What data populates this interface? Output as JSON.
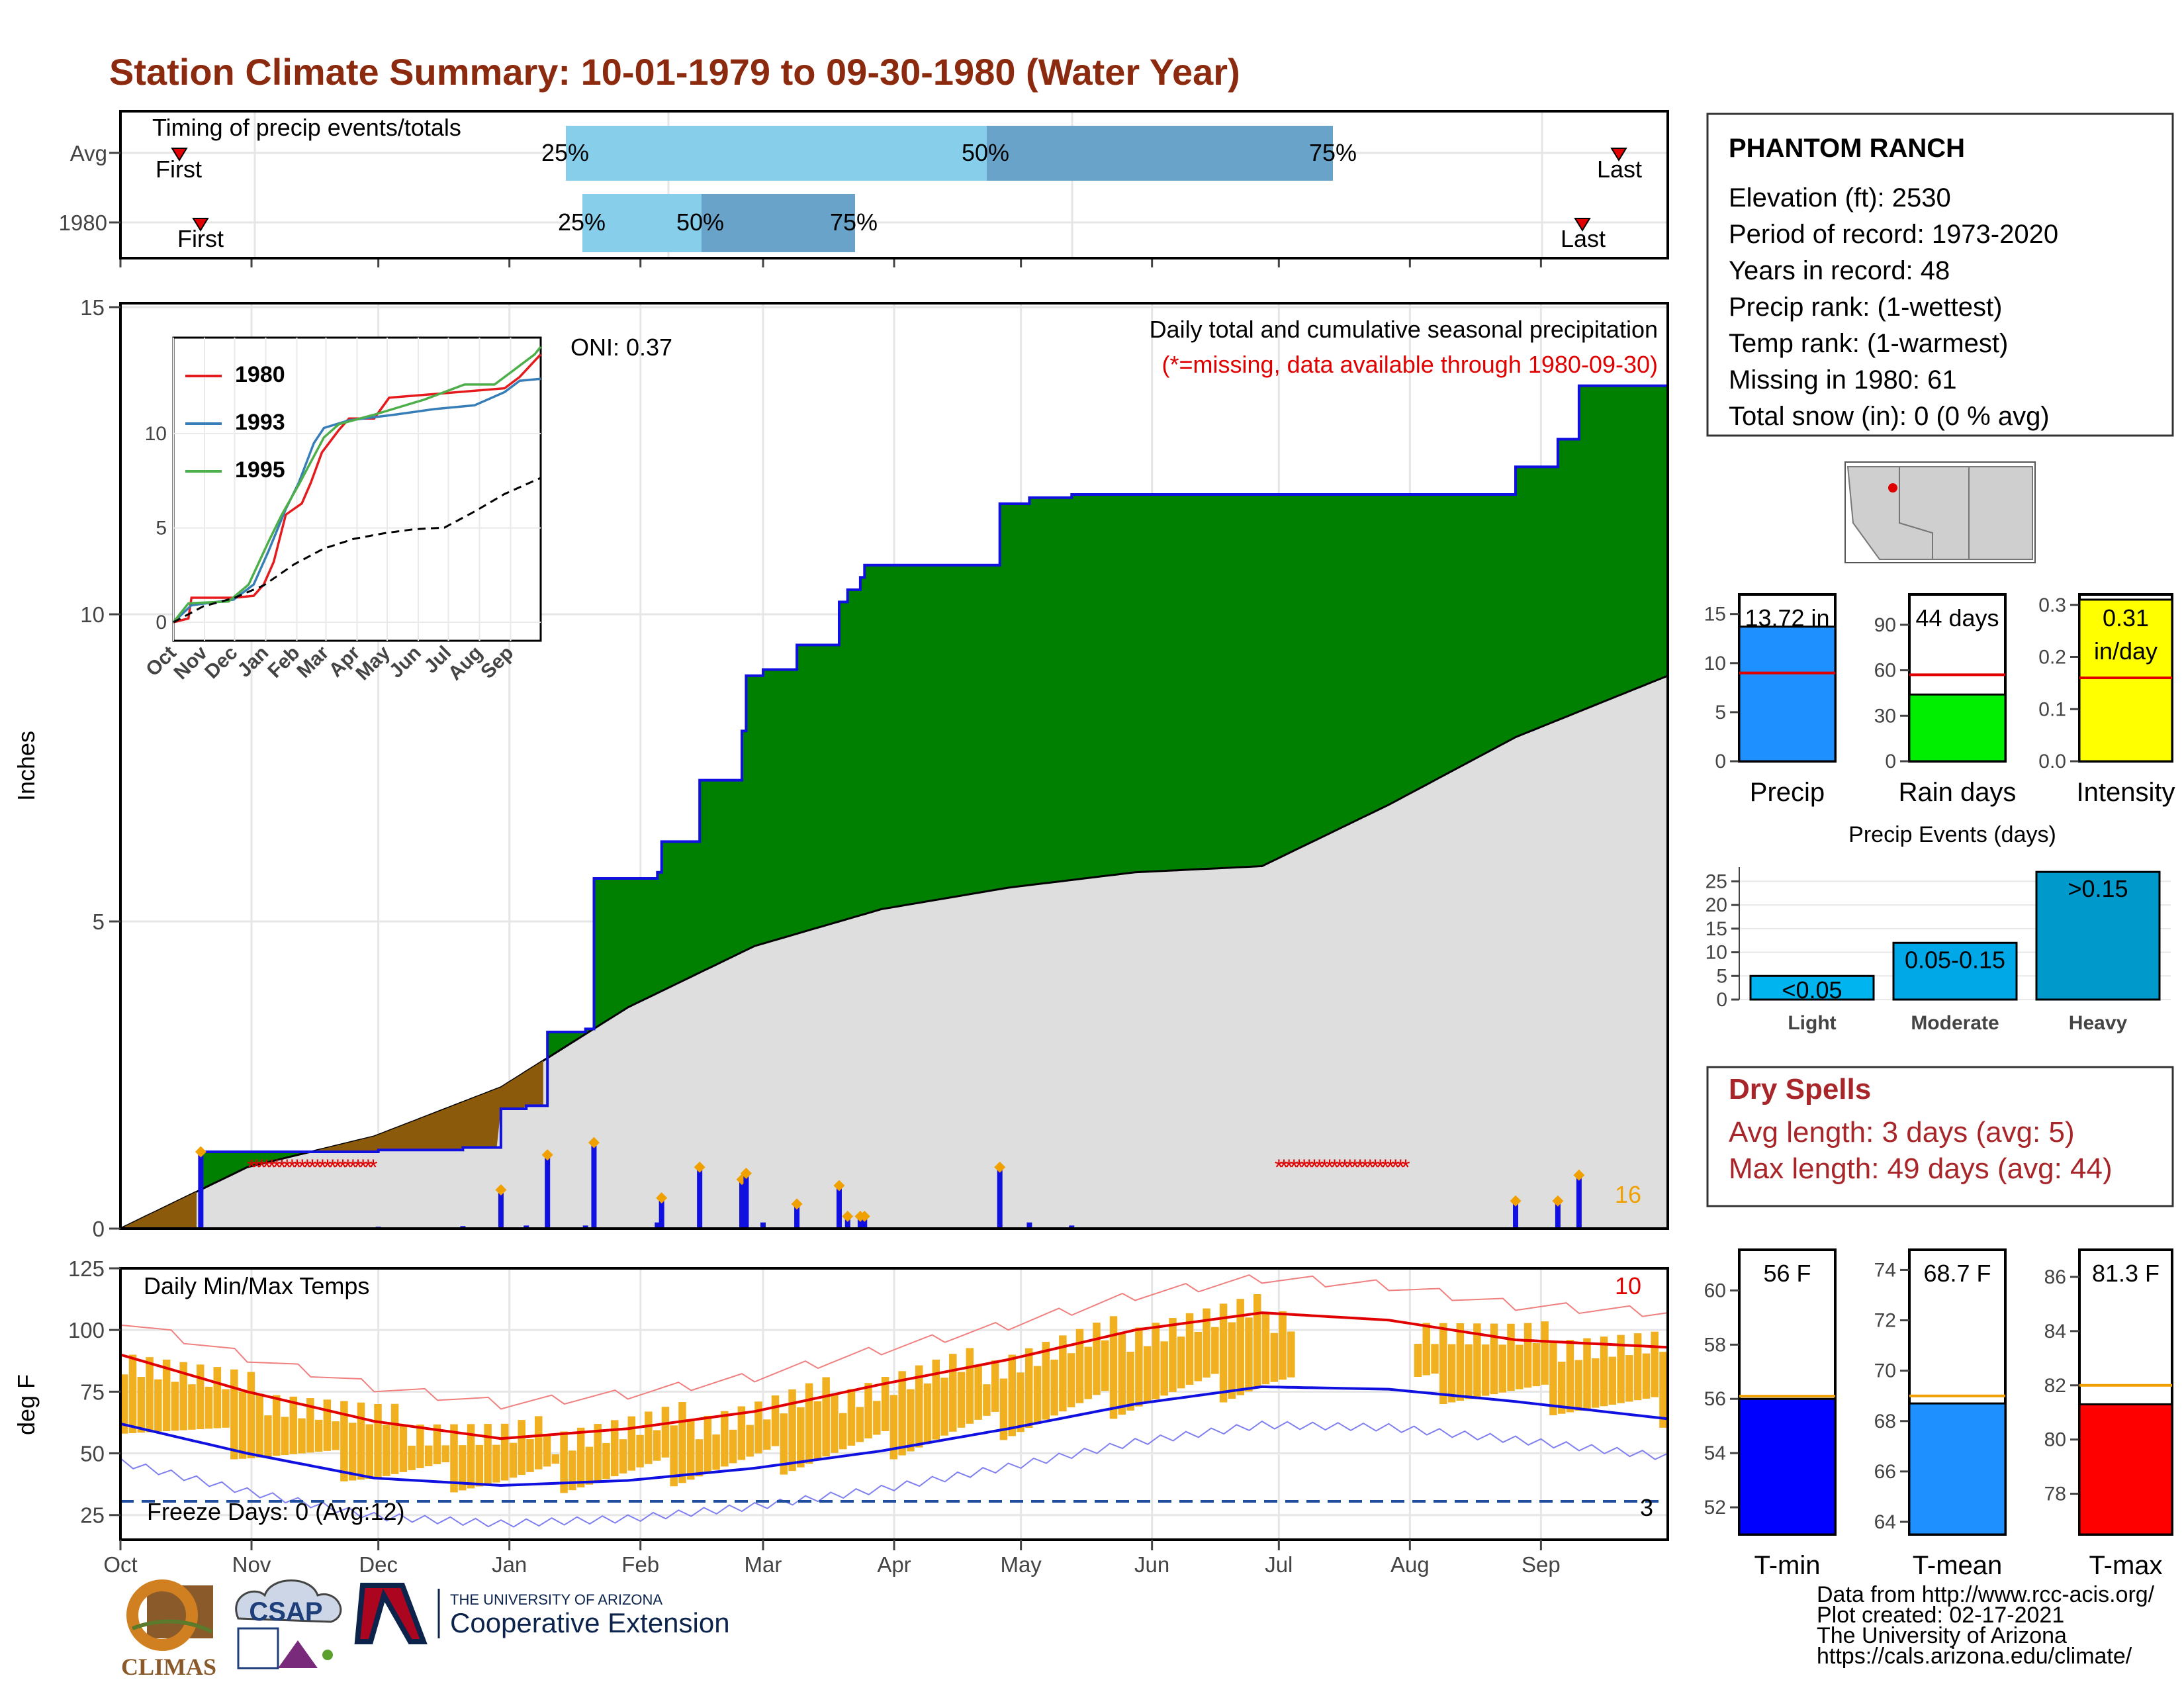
{
  "title": "Station Climate Summary: 10-01-1979 to 09-30-1980 (Water Year)",
  "timing": {
    "title": "Timing of precip events/totals",
    "rows": [
      "Avg",
      "1980"
    ],
    "first_label": "First",
    "last_label": "Last",
    "p25": "25%",
    "p50": "50%",
    "p75": "75%"
  },
  "station": {
    "name": "PHANTOM RANCH",
    "elevation": "Elevation (ft): 2530",
    "period": "Period of record: 1973-2020",
    "years": "Years in record: 48",
    "precip_rank": "Precip rank:  (1-wettest)",
    "temp_rank": "Temp rank:  (1-warmest)",
    "missing": "Missing in 1980: 61",
    "snow": "Total snow (in): 0 (0 % avg)"
  },
  "precip_panel": {
    "ylabel": "Inches",
    "oni": "ONI: 0.37",
    "header": "Daily total and cumulative seasonal precipitation",
    "missing_note": "(*=missing, data available through 1980-09-30)",
    "count_label": "16",
    "yticks": [
      "0",
      "5",
      "10",
      "15"
    ]
  },
  "inset": {
    "legend": [
      "1980",
      "1993",
      "1995"
    ],
    "colors": [
      "#e41a1c",
      "#377eb8",
      "#4daf4a"
    ],
    "yticks": [
      "0",
      "5",
      "10"
    ],
    "xticks": [
      "Oct",
      "Nov",
      "Dec",
      "Jan",
      "Feb",
      "Mar",
      "Apr",
      "May",
      "Jun",
      "Jul",
      "Aug",
      "Sep"
    ]
  },
  "temp_panel": {
    "ylabel": "deg F",
    "header": "Daily Min/Max Temps",
    "freeze": "Freeze Days: 0 (Avg:12)",
    "count_hot": "10",
    "count_cold": "3",
    "yticks": [
      "25",
      "50",
      "75",
      "100",
      "125"
    ]
  },
  "months": [
    "Oct",
    "Nov",
    "Dec",
    "Jan",
    "Feb",
    "Mar",
    "Apr",
    "May",
    "Jun",
    "Jul",
    "Aug",
    "Sep"
  ],
  "bars_precip": {
    "precip": {
      "label": "Precip",
      "value": "13.72 in",
      "yticks": [
        "0",
        "5",
        "10",
        "15"
      ]
    },
    "raindays": {
      "label": "Rain days",
      "value": "44 days",
      "yticks": [
        "0",
        "30",
        "60",
        "90"
      ]
    },
    "intensity": {
      "label": "Intensity",
      "value_line1": "0.31",
      "value_line2": "in/day",
      "yticks": [
        "0.0",
        "0.1",
        "0.2",
        "0.3"
      ]
    }
  },
  "events": {
    "title": "Precip Events (days)",
    "categories": [
      "Light",
      "Moderate",
      "Heavy"
    ],
    "labels": [
      "<0.05",
      "0.05-0.15",
      ">0.15"
    ],
    "yticks": [
      "0",
      "5",
      "10",
      "15",
      "20",
      "25"
    ]
  },
  "dry_spells": {
    "title": "Dry Spells",
    "avg": "Avg length: 3 days (avg: 5)",
    "max": "Max length: 49 days (avg: 44)"
  },
  "temp_bars": {
    "tmin": {
      "label": "T-min",
      "value": "56 F",
      "yticks": [
        "52",
        "54",
        "56",
        "58",
        "60"
      ]
    },
    "tmean": {
      "label": "T-mean",
      "value": "68.7 F",
      "yticks": [
        "64",
        "66",
        "68",
        "70",
        "72",
        "74"
      ]
    },
    "tmax": {
      "label": "T-max",
      "value": "81.3 F",
      "yticks": [
        "78",
        "80",
        "82",
        "84",
        "86"
      ]
    }
  },
  "footer": {
    "line1": "Data from http://www.rcc-acis.org/",
    "line2": "Plot created: 02-17-2021",
    "line3": "The University of Arizona",
    "line4": "https://cals.arizona.edu/climate/",
    "ua_small": "THE UNIVERSITY OF ARIZONA",
    "ua_big": "Cooperative Extension",
    "climas": "CLIMAS",
    "csap": "CSAP"
  },
  "chart_data": [
    {
      "type": "area",
      "title": "Daily total and cumulative seasonal precipitation",
      "ylabel": "Inches",
      "ylim": [
        0,
        15
      ],
      "categories": [
        "Oct",
        "Nov",
        "Dec",
        "Jan",
        "Feb",
        "Mar",
        "Apr",
        "May",
        "Jun",
        "Jul",
        "Aug",
        "Sep"
      ],
      "series": [
        {
          "name": "1980",
          "x": [
            0,
            18,
            19,
            60,
            61,
            81,
            90,
            96,
            101,
            110,
            112,
            127,
            128,
            135,
            137,
            147,
            148,
            152,
            160,
            170,
            172,
            175,
            176,
            200,
            208,
            215,
            225,
            325,
            330,
            340,
            345,
            366
          ],
          "values": [
            0,
            0,
            1.25,
            1.25,
            1.28,
            1.32,
            1.95,
            2.0,
            3.2,
            3.25,
            5.7,
            5.8,
            6.3,
            6.3,
            7.3,
            8.1,
            9.0,
            9.1,
            9.5,
            10.2,
            10.4,
            10.6,
            10.8,
            10.8,
            11.8,
            11.9,
            11.95,
            11.95,
            12.4,
            12.85,
            13.72,
            13.72
          ]
        },
        {
          "name": "Average",
          "x": [
            0,
            30,
            60,
            90,
            120,
            150,
            180,
            210,
            240,
            270,
            300,
            330,
            366
          ],
          "values": [
            0,
            1.0,
            1.5,
            2.3,
            3.6,
            4.6,
            5.2,
            5.55,
            5.8,
            5.9,
            6.9,
            8.0,
            9.0
          ]
        }
      ]
    },
    {
      "type": "bar",
      "title": "Precip Events (days)",
      "categories": [
        "Light",
        "Moderate",
        "Heavy"
      ],
      "values": [
        5,
        12,
        27
      ],
      "ylim": [
        0,
        28
      ]
    },
    {
      "type": "bar",
      "title": "Summary",
      "categories": [
        "Precip",
        "Rain days",
        "Intensity",
        "T-min",
        "T-mean",
        "T-max"
      ],
      "values": [
        13.72,
        44,
        0.31,
        56,
        68.7,
        81.3
      ],
      "averages": [
        9.0,
        57,
        0.16,
        56.1,
        69.0,
        82.0
      ]
    },
    {
      "type": "line",
      "title": "Daily Min/Max Temps",
      "ylabel": "deg F",
      "ylim": [
        15,
        125
      ],
      "categories": [
        "Oct",
        "Nov",
        "Dec",
        "Jan",
        "Feb",
        "Mar",
        "Apr",
        "May",
        "Jun",
        "Jul",
        "Aug",
        "Sep"
      ],
      "series": [
        {
          "name": "Avg max",
          "x": [
            0,
            30,
            60,
            90,
            120,
            150,
            180,
            210,
            240,
            270,
            300,
            330,
            366
          ],
          "values": [
            90,
            75,
            63,
            56,
            60,
            67,
            78,
            88,
            100,
            107,
            104,
            96,
            93
          ]
        },
        {
          "name": "Avg min",
          "x": [
            0,
            30,
            60,
            90,
            120,
            150,
            180,
            210,
            240,
            270,
            300,
            330,
            366
          ],
          "values": [
            62,
            50,
            40,
            37,
            39,
            44,
            51,
            60,
            70,
            77,
            76,
            71,
            64
          ]
        }
      ]
    }
  ]
}
